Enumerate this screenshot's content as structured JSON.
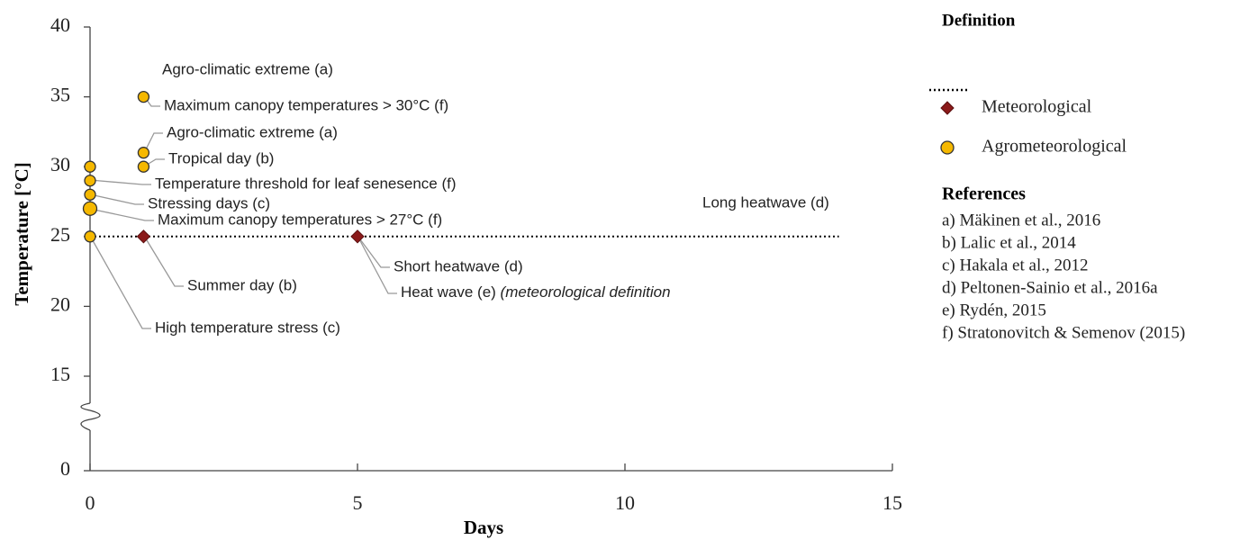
{
  "chart_data": {
    "type": "scatter",
    "xlabel": "Days",
    "ylabel": "Temperature [°C]",
    "xlim": [
      0,
      15
    ],
    "xticks": [
      0,
      5,
      10,
      15
    ],
    "ylim": [
      0,
      40
    ],
    "yticks": [
      0,
      15,
      20,
      25,
      30,
      35,
      40
    ],
    "y_break": [
      0,
      15
    ],
    "legend_title": "Definition",
    "series": [
      {
        "style": "dotted",
        "color": "#000000",
        "x": [
          0,
          14
        ],
        "values": [
          25,
          25
        ]
      },
      {
        "name": "Meteorological",
        "marker": "diamond",
        "color": "#8b1a1a",
        "x": [
          1,
          5
        ],
        "values": [
          25,
          25
        ]
      },
      {
        "name": "Agrometeorological",
        "marker": "circle",
        "color": "#f5b800",
        "x": [
          0,
          0,
          0,
          0,
          0,
          1,
          1,
          1
        ],
        "values": [
          30,
          29,
          28,
          27,
          25,
          35,
          31,
          30
        ]
      }
    ],
    "annotations": [
      "Agro-climatic extreme (a)",
      "Maximum canopy temperatures > 30°C  (f)",
      "Agro-climatic extreme (a)",
      "Tropical day (b)",
      "Temperature threshold for leaf senesence (f)",
      "Stressing days (c)",
      "Maximum canopy temperatures > 27°C  (f)",
      "Long heatwave (d)",
      "Short heatwave (d)",
      [
        "Heat wave (e) ",
        "(meteorological definition"
      ],
      "Summer day (b)",
      "High temperature stress (c)"
    ],
    "references_title": "References",
    "references": [
      "a) Mäkinen et al., 2016",
      "b) Lalic et al., 2014",
      "c) Hakala et al., 2012",
      "d) Peltonen-Sainio et al., 2016a",
      "e) Rydén, 2015",
      "f) Stratonovitch & Semenov (2015)"
    ]
  }
}
